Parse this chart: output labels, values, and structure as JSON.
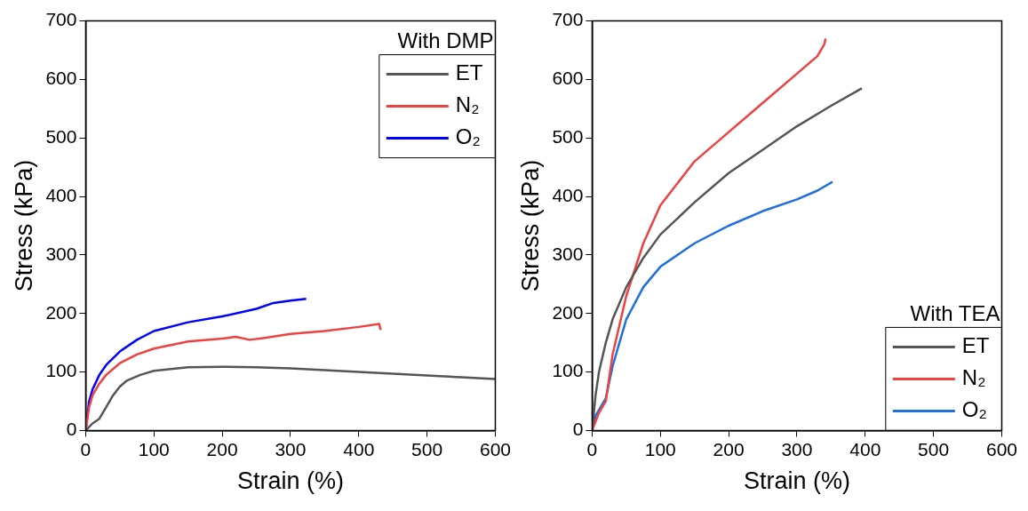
{
  "chart_data": [
    {
      "type": "line",
      "xlabel": "Strain (%)",
      "ylabel": "Stress (kPa)",
      "legend_title": "With DMP",
      "legend": "top right",
      "xlim": [
        0,
        600
      ],
      "ylim": [
        0,
        700
      ],
      "xticks": [
        0,
        100,
        200,
        300,
        400,
        500,
        600
      ],
      "yticks": [
        0,
        100,
        200,
        300,
        400,
        500,
        600,
        700
      ],
      "grid": false,
      "series": [
        {
          "name": "ET",
          "color": "#555555",
          "x": [
            0,
            10,
            20,
            30,
            40,
            50,
            60,
            80,
            100,
            150,
            200,
            250,
            300,
            400,
            450,
            500,
            550,
            600
          ],
          "values": [
            0,
            12,
            20,
            40,
            60,
            75,
            85,
            95,
            102,
            108,
            109,
            108,
            106,
            100,
            97,
            94,
            91,
            88
          ]
        },
        {
          "name": "N₂",
          "color": "#f04040",
          "x": [
            0,
            5,
            10,
            20,
            30,
            50,
            75,
            100,
            150,
            200,
            220,
            240,
            260,
            300,
            350,
            400,
            430,
            432
          ],
          "values": [
            0,
            40,
            60,
            80,
            95,
            115,
            130,
            140,
            152,
            157,
            160,
            155,
            158,
            165,
            170,
            177,
            182,
            172
          ]
        },
        {
          "name": "O₂",
          "color": "#0000ff",
          "x": [
            0,
            5,
            10,
            20,
            30,
            50,
            75,
            100,
            150,
            200,
            250,
            275,
            300,
            323
          ],
          "values": [
            0,
            50,
            70,
            95,
            112,
            135,
            155,
            170,
            185,
            195,
            208,
            218,
            222,
            225
          ]
        }
      ]
    },
    {
      "type": "line",
      "xlabel": "Strain (%)",
      "ylabel": "Stress (kPa)",
      "legend_title": "With TEA",
      "legend": "bottom right",
      "xlim": [
        0,
        600
      ],
      "ylim": [
        0,
        700
      ],
      "xticks": [
        0,
        100,
        200,
        300,
        400,
        500,
        600
      ],
      "yticks": [
        0,
        100,
        200,
        300,
        400,
        500,
        600,
        700
      ],
      "grid": false,
      "series": [
        {
          "name": "ET",
          "color": "#555555",
          "x": [
            0,
            5,
            10,
            20,
            30,
            50,
            75,
            100,
            150,
            200,
            250,
            300,
            350,
            395
          ],
          "values": [
            0,
            60,
            100,
            150,
            190,
            245,
            295,
            335,
            390,
            440,
            480,
            520,
            555,
            585
          ]
        },
        {
          "name": "N₂",
          "color": "#f04040",
          "x": [
            0,
            10,
            20,
            30,
            50,
            75,
            100,
            150,
            200,
            250,
            300,
            330,
            340,
            342
          ],
          "values": [
            0,
            30,
            50,
            130,
            230,
            320,
            385,
            460,
            510,
            560,
            610,
            640,
            660,
            670
          ]
        },
        {
          "name": "O₂",
          "color": "#1f6fe0",
          "x": [
            0,
            5,
            20,
            30,
            50,
            75,
            100,
            150,
            200,
            250,
            300,
            330,
            352
          ],
          "values": [
            0,
            25,
            55,
            110,
            190,
            245,
            280,
            320,
            350,
            375,
            395,
            410,
            425
          ]
        }
      ]
    }
  ]
}
